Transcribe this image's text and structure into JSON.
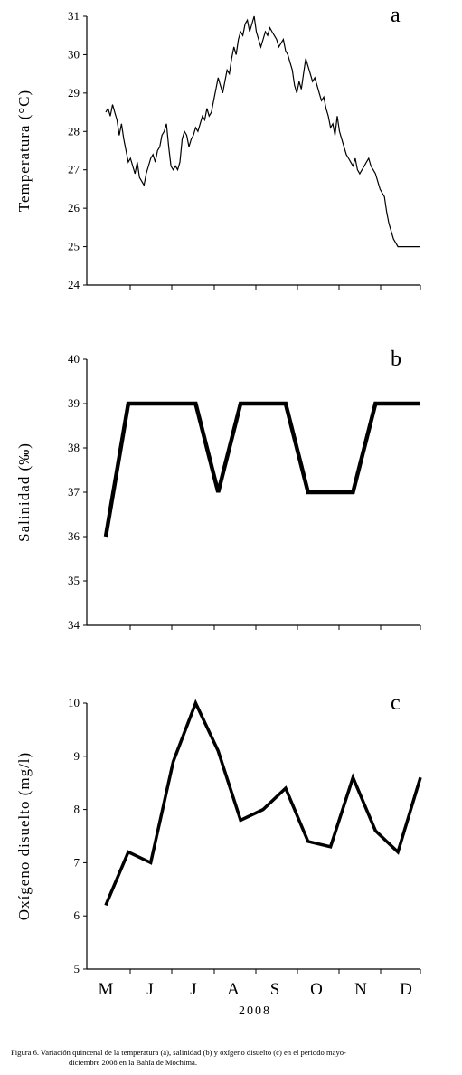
{
  "caption": {
    "line1": "Figura 6. Variación quincenal de la temperatura (a), salinidad (b) y oxígeno disuelto (c) en el periodo mayo-",
    "line2": "diciembre 2008 en la Bahía de Mochima."
  },
  "chart_data": [
    {
      "type": "line",
      "panel": "a",
      "ylabel": "Temperatura (°C)",
      "ylim": [
        24,
        31
      ],
      "yticks": [
        "24",
        "25",
        "26",
        "27",
        "28",
        "29",
        "30",
        "31"
      ],
      "x": [
        0.0,
        0.05,
        0.1,
        0.15,
        0.2,
        0.25,
        0.3,
        0.35,
        0.4,
        0.45,
        0.5,
        0.55,
        0.6,
        0.65,
        0.7,
        0.75,
        0.8,
        0.85,
        0.9,
        0.95,
        1.0,
        1.05,
        1.1,
        1.15,
        1.2,
        1.25,
        1.3,
        1.35,
        1.4,
        1.45,
        1.5,
        1.55,
        1.6,
        1.65,
        1.7,
        1.75,
        1.8,
        1.85,
        1.9,
        1.95,
        2.0,
        2.05,
        2.1,
        2.15,
        2.2,
        2.25,
        2.3,
        2.35,
        2.4,
        2.45,
        2.5,
        2.55,
        2.6,
        2.65,
        2.7,
        2.75,
        2.8,
        2.85,
        2.9,
        2.95,
        3.0,
        3.05,
        3.1,
        3.15,
        3.2,
        3.25,
        3.3,
        3.35,
        3.4,
        3.45,
        3.5,
        3.55,
        3.6,
        3.65,
        3.7,
        3.75,
        3.8,
        3.85,
        3.9,
        3.95,
        4.0,
        4.05,
        4.1,
        4.15,
        4.2,
        4.25,
        4.3,
        4.35,
        4.4,
        4.45,
        4.5,
        4.55,
        4.6,
        4.65,
        4.7,
        4.75,
        4.8,
        4.85,
        4.9,
        4.95,
        5.0,
        5.05,
        5.1,
        5.15,
        5.2,
        5.25,
        5.3,
        5.35,
        5.4,
        5.45,
        5.5,
        5.55,
        5.6,
        5.65,
        5.7,
        5.75,
        5.8,
        5.85,
        5.9,
        5.95,
        6.0,
        6.05,
        6.1,
        6.15,
        6.2,
        6.25,
        6.3,
        6.35,
        6.4,
        6.45,
        6.5,
        6.55,
        6.6,
        6.65,
        6.7,
        6.75,
        6.8,
        6.85,
        6.9,
        6.95,
        7.0
      ],
      "values": [
        28.5,
        28.6,
        28.4,
        28.7,
        28.5,
        28.3,
        27.9,
        28.2,
        27.8,
        27.5,
        27.2,
        27.3,
        27.1,
        26.9,
        27.2,
        26.8,
        26.7,
        26.6,
        26.9,
        27.1,
        27.3,
        27.4,
        27.2,
        27.5,
        27.6,
        27.9,
        28.0,
        28.2,
        27.6,
        27.1,
        27.0,
        27.1,
        27.0,
        27.2,
        27.8,
        28.0,
        27.9,
        27.6,
        27.8,
        27.9,
        28.1,
        28.0,
        28.2,
        28.4,
        28.3,
        28.6,
        28.4,
        28.5,
        28.8,
        29.1,
        29.4,
        29.2,
        29.0,
        29.3,
        29.6,
        29.5,
        29.9,
        30.2,
        30.0,
        30.4,
        30.6,
        30.5,
        30.8,
        30.9,
        30.6,
        30.8,
        31.0,
        30.6,
        30.4,
        30.2,
        30.4,
        30.6,
        30.5,
        30.7,
        30.6,
        30.5,
        30.4,
        30.2,
        30.3,
        30.4,
        30.1,
        30.0,
        29.8,
        29.6,
        29.2,
        29.0,
        29.3,
        29.1,
        29.5,
        29.9,
        29.7,
        29.5,
        29.3,
        29.4,
        29.2,
        29.0,
        28.8,
        28.9,
        28.6,
        28.4,
        28.1,
        28.2,
        27.9,
        28.4,
        28.0,
        27.8,
        27.6,
        27.4,
        27.3,
        27.2,
        27.1,
        27.3,
        27.0,
        26.9,
        27.0,
        27.1,
        27.2,
        27.3,
        27.1,
        27.0,
        26.9,
        26.7,
        26.5,
        26.4,
        26.3,
        25.9,
        25.6,
        25.4,
        25.2,
        25.1,
        25.0,
        25.0,
        25.0,
        25.0,
        25.0,
        25.0,
        25.0,
        25.0,
        25.0,
        25.0,
        25.0
      ]
    },
    {
      "type": "line",
      "panel": "b",
      "ylabel": "Salinidad (‰)",
      "ylim": [
        34,
        40
      ],
      "yticks": [
        "34",
        "35",
        "36",
        "37",
        "38",
        "39",
        "40"
      ],
      "x": [
        0.0,
        0.5,
        1.0,
        1.5,
        2.0,
        2.5,
        3.0,
        3.5,
        4.0,
        4.5,
        5.0,
        5.5,
        6.0,
        6.5,
        7.0
      ],
      "values": [
        36,
        39,
        39,
        39,
        39,
        37,
        39,
        39,
        39,
        37,
        37,
        37,
        39,
        39,
        39
      ]
    },
    {
      "type": "line",
      "panel": "c",
      "ylabel": "Oxígeno disuelto (mg/l)",
      "ylim": [
        5,
        10
      ],
      "yticks": [
        "5",
        "6",
        "7",
        "8",
        "9",
        "10"
      ],
      "categories": [
        "M",
        "J",
        "J",
        "A",
        "S",
        "O",
        "N",
        "D"
      ],
      "xlabel": "2008",
      "x": [
        0.0,
        0.5,
        1.0,
        1.5,
        2.0,
        2.5,
        3.0,
        3.5,
        4.0,
        4.5,
        5.0,
        5.5,
        6.0,
        6.5,
        7.0
      ],
      "values": [
        6.2,
        7.2,
        7.0,
        8.9,
        10.0,
        9.1,
        7.8,
        8.0,
        8.4,
        7.4,
        7.3,
        8.6,
        7.6,
        7.2,
        8.6
      ]
    }
  ]
}
